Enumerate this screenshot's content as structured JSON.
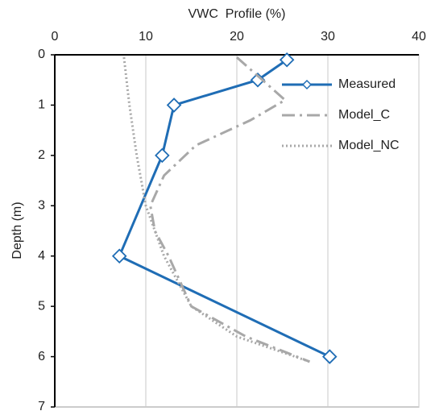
{
  "chart_data": {
    "type": "line",
    "title": "VWC  Profile (%)",
    "y_label": "Depth (m)",
    "xlim": [
      0,
      40
    ],
    "xticks": [
      0,
      10,
      20,
      30,
      40
    ],
    "ylim": [
      0,
      7
    ],
    "yticks": [
      0,
      1,
      2,
      3,
      4,
      5,
      6,
      7
    ],
    "y_inverted": true,
    "grid": true,
    "legend": "upper right",
    "series": [
      {
        "name": "Measured",
        "color": "#1f6db5",
        "style": "solid",
        "marker": "diamond",
        "x": [
          25.5,
          22.3,
          13.1,
          11.8,
          7.1,
          30.2
        ],
        "y": [
          0.1,
          0.5,
          1.0,
          2.0,
          4.0,
          6.0
        ]
      },
      {
        "name": "Model_C",
        "color": "#a8a8a8",
        "style": "dashdot",
        "marker": null,
        "x": [
          20.0,
          25.3,
          21.5,
          15.5,
          12.0,
          10.5,
          11.0,
          12.5,
          15.0,
          21.0,
          28.0
        ],
        "y": [
          0.05,
          0.9,
          1.3,
          1.8,
          2.4,
          3.0,
          3.5,
          4.0,
          5.0,
          5.6,
          6.1
        ]
      },
      {
        "name": "Model_NC",
        "color": "#a8a8a8",
        "style": "dotted",
        "marker": null,
        "x": [
          7.6,
          8.2,
          9.0,
          10.0,
          12.0,
          15.0,
          20.0,
          28.0
        ],
        "y": [
          0.05,
          1.0,
          2.0,
          3.0,
          4.0,
          5.0,
          5.6,
          6.1
        ]
      }
    ]
  }
}
